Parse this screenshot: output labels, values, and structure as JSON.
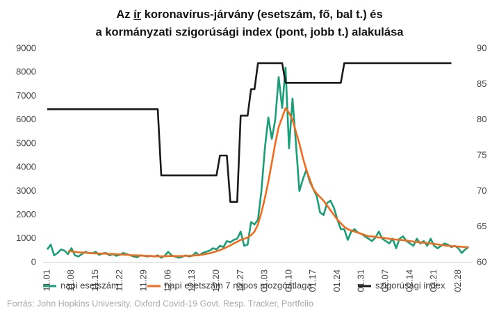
{
  "chart_data": {
    "type": "line",
    "title": {
      "line1": [
        "Az ",
        "ír",
        " koronavírus-járvány (esetszám, fő, bal t.) és"
      ],
      "line2": "a kormányzati szigorúsági index (pont, jobb t.) alakulása"
    },
    "source": "Forrás: John Hopkins University, Oxford Covid-19 Govt. Resp. Tracker, Portfolio",
    "categories": [
      "11.01",
      null,
      null,
      null,
      null,
      null,
      null,
      "11.08",
      null,
      null,
      null,
      null,
      null,
      null,
      "11.15",
      null,
      null,
      null,
      null,
      null,
      null,
      "11.22",
      null,
      null,
      null,
      null,
      null,
      null,
      "11.29",
      null,
      null,
      null,
      null,
      null,
      null,
      "12.06",
      null,
      null,
      null,
      null,
      null,
      null,
      "12.13",
      null,
      null,
      null,
      null,
      null,
      null,
      "12.20",
      null,
      null,
      null,
      null,
      null,
      null,
      "12.27",
      null,
      null,
      null,
      null,
      null,
      null,
      "01.03",
      null,
      null,
      null,
      null,
      null,
      null,
      "01.10",
      null,
      null,
      null,
      null,
      null,
      null,
      "01.17",
      null,
      null,
      null,
      null,
      null,
      null,
      "01.24",
      null,
      null,
      null,
      null,
      null,
      null,
      "01.31",
      null,
      null,
      null,
      null,
      null,
      null,
      "02.07",
      null,
      null,
      null,
      null,
      null,
      null,
      "02.14",
      null,
      null,
      null,
      null,
      null,
      null,
      "02.21",
      null,
      null,
      null,
      null,
      null,
      null,
      "02.28",
      null,
      null,
      null
    ],
    "ylim": [
      0,
      9000
    ],
    "yticks": [
      0,
      1000,
      2000,
      3000,
      4000,
      5000,
      6000,
      7000,
      8000,
      9000
    ],
    "y2lim": [
      60,
      90
    ],
    "y2ticks": [
      60,
      65,
      70,
      75,
      80,
      85,
      90
    ],
    "legend": "bottom",
    "series": [
      {
        "name": "napi esetszám",
        "color": "#1a9e77",
        "values": [
          550,
          750,
          300,
          400,
          550,
          500,
          350,
          600,
          300,
          250,
          350,
          450,
          400,
          380,
          450,
          320,
          380,
          400,
          300,
          350,
          280,
          320,
          400,
          350,
          300,
          250,
          220,
          300,
          280,
          250,
          280,
          250,
          300,
          200,
          280,
          450,
          300,
          250,
          200,
          230,
          300,
          250,
          280,
          420,
          300,
          400,
          450,
          500,
          600,
          550,
          700,
          650,
          900,
          850,
          950,
          1000,
          1300,
          700,
          750,
          1700,
          1600,
          1800,
          3000,
          4800,
          6100,
          5200,
          6000,
          7800,
          6500,
          8200,
          4800,
          6900,
          5000,
          3000,
          3500,
          3900,
          3400,
          3100,
          2800,
          2100,
          2000,
          2500,
          2600,
          2300,
          1800,
          1400,
          1400,
          950,
          1300,
          1400,
          1250,
          1200,
          1100,
          1000,
          900,
          1050,
          1300,
          1000,
          900,
          800,
          1000,
          600,
          1000,
          1100,
          900,
          800,
          700,
          1000,
          800,
          900,
          700,
          1000,
          700,
          600,
          700,
          800,
          750,
          650,
          700,
          600,
          400,
          550,
          650
        ]
      },
      {
        "name": "napi esetszám 7 napos mozgóátlaga",
        "color": "#f26b1d",
        "values": [
          null,
          null,
          null,
          null,
          null,
          null,
          480,
          470,
          450,
          430,
          420,
          410,
          400,
          390,
          380,
          380,
          370,
          370,
          360,
          360,
          350,
          340,
          330,
          320,
          310,
          300,
          300,
          290,
          280,
          280,
          270,
          270,
          260,
          260,
          260,
          270,
          270,
          270,
          270,
          270,
          280,
          280,
          290,
          300,
          310,
          330,
          360,
          390,
          430,
          470,
          520,
          580,
          650,
          720,
          800,
          870,
          950,
          1000,
          1050,
          1150,
          1300,
          1600,
          2100,
          2700,
          3400,
          4200,
          5000,
          5700,
          6100,
          6500,
          6300,
          6000,
          5500,
          5000,
          4400,
          3900,
          3500,
          3100,
          2900,
          2750,
          2600,
          2400,
          2200,
          2000,
          1800,
          1650,
          1500,
          1400,
          1350,
          1300,
          1250,
          1200,
          1150,
          1100,
          1100,
          1080,
          1050,
          1050,
          1020,
          1000,
          980,
          960,
          950,
          940,
          920,
          900,
          880,
          860,
          850,
          830,
          820,
          800,
          780,
          760,
          740,
          720,
          700,
          690,
          680,
          670,
          660,
          650,
          640
        ]
      },
      {
        "name": "szigorúsági index",
        "color": "#1a1a1a",
        "axis": "y2",
        "values": [
          81.5,
          81.5,
          81.5,
          81.5,
          81.5,
          81.5,
          81.5,
          81.5,
          81.5,
          81.5,
          81.5,
          81.5,
          81.5,
          81.5,
          81.5,
          81.5,
          81.5,
          81.5,
          81.5,
          81.5,
          81.5,
          81.5,
          81.5,
          81.5,
          81.5,
          81.5,
          81.5,
          81.5,
          81.5,
          81.5,
          81.5,
          81.5,
          81.5,
          72.2,
          72.2,
          72.2,
          72.2,
          72.2,
          72.2,
          72.2,
          72.2,
          72.2,
          72.2,
          72.2,
          72.2,
          72.2,
          72.2,
          72.2,
          72.2,
          72.2,
          75,
          75,
          75,
          68.5,
          68.5,
          68.5,
          80.6,
          80.6,
          80.6,
          84.3,
          84.3,
          87.96,
          87.96,
          87.96,
          87.96,
          87.96,
          87.96,
          87.96,
          87.96,
          85.2,
          85.2,
          85.2,
          85.2,
          85.2,
          85.2,
          85.2,
          85.2,
          85.2,
          85.2,
          85.2,
          85.2,
          85.2,
          85.2,
          85.2,
          85.2,
          85.2,
          87.96,
          87.96,
          87.96,
          87.96,
          87.96,
          87.96,
          87.96,
          87.96,
          87.96,
          87.96,
          87.96,
          87.96,
          87.96,
          87.96,
          87.96,
          87.96,
          87.96,
          87.96,
          87.96,
          87.96,
          87.96,
          87.96,
          87.96,
          87.96,
          87.96,
          87.96,
          87.96,
          87.96,
          87.96,
          87.96,
          87.96,
          87.96,
          null,
          null,
          null,
          null,
          null
        ]
      }
    ]
  }
}
